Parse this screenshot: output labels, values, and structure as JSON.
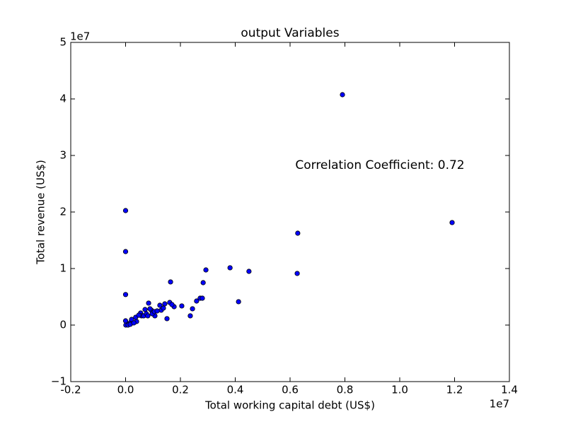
{
  "chart_data": {
    "type": "scatter",
    "title": "output Variables",
    "x_label": "Total working capital debt (US$)",
    "y_label": "Total revenue (US$)",
    "x_multiplier": "1e7",
    "y_multiplier": "1e7",
    "annotation": "Correlation Coefficient: 0.72",
    "color": "#0000ff",
    "xlim": [
      -0.2,
      1.4
    ],
    "ylim": [
      -1,
      5
    ],
    "xticks": [
      -0.2,
      {
        "value": 0,
        "label": "0.0"
      },
      0.2,
      0.4,
      0.6,
      0.8,
      {
        "value": 1,
        "label": "1.0"
      },
      1.2,
      1.4
    ],
    "yticks": [
      {
        "value": -1,
        "label": "−1"
      },
      0,
      1,
      2,
      3,
      4,
      5
    ],
    "x": [
      0.791,
      0.0,
      0.0,
      0.0,
      1.191,
      0.628,
      0.626,
      0.381,
      0.45,
      0.293,
      0.164,
      0.283,
      0.412,
      0.272,
      0.259,
      0.28,
      0.244,
      0.236,
      0.205,
      0.177,
      0.161,
      0.169,
      0.151,
      0.143,
      0.125,
      0.13,
      0.107,
      0.084,
      0.094,
      0.071,
      0.089,
      0.055,
      0.058,
      0.037,
      0.019,
      0.022,
      0.006,
      0.001,
      0.009,
      0.017,
      0.04,
      0.048,
      0.066,
      0.076,
      0.097,
      0.105,
      0.115,
      0.138,
      0.081,
      0.03,
      0.0
    ],
    "values": [
      4.075,
      2.025,
      1.3,
      0.54,
      1.813,
      1.625,
      0.913,
      1.013,
      0.95,
      0.975,
      0.763,
      0.75,
      0.413,
      0.475,
      0.425,
      0.475,
      0.288,
      0.163,
      0.338,
      0.325,
      0.4,
      0.363,
      0.113,
      0.375,
      0.35,
      0.263,
      0.163,
      0.388,
      0.263,
      0.275,
      0.288,
      0.213,
      0.163,
      0.138,
      0.05,
      0.1,
      0.025,
      0,
      0,
      0.013,
      0.063,
      0.175,
      0.163,
      0.2,
      0.2,
      0.238,
      0.25,
      0.3,
      0.163,
      0.038,
      0.075
    ]
  }
}
